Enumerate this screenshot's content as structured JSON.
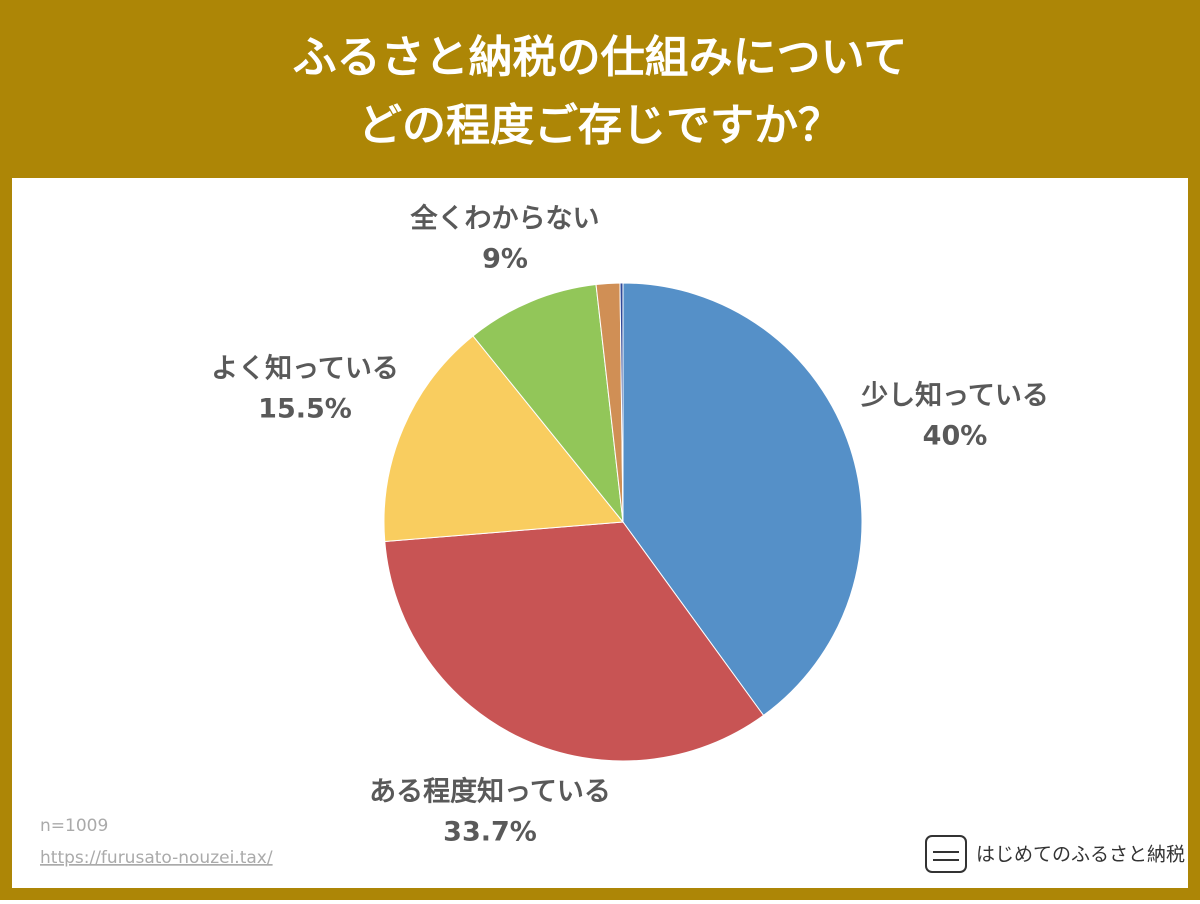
{
  "chart_data": {
    "type": "pie",
    "title": [
      "ふるさと納税の仕組みについて",
      "どの程度ご存じですか？"
    ],
    "categories": [
      "少し知っている",
      "ある程度知っている",
      "よく知っている",
      "全くわからない",
      null,
      null
    ],
    "values": [
      40,
      33.7,
      15.5,
      9,
      1.6,
      0.2
    ],
    "value_labels": [
      "40%",
      "33.7%",
      "15.5%",
      "9%",
      null,
      null
    ],
    "colors": [
      "#5590c8",
      "#c85454",
      "#f9cd5f",
      "#92c659",
      "#d08f55",
      "#2f4a9a"
    ]
  },
  "footer": {
    "sample": "n=1009",
    "url": "https://furusato-nouzei.tax/",
    "brand": "はじめてのふるさと納税"
  }
}
